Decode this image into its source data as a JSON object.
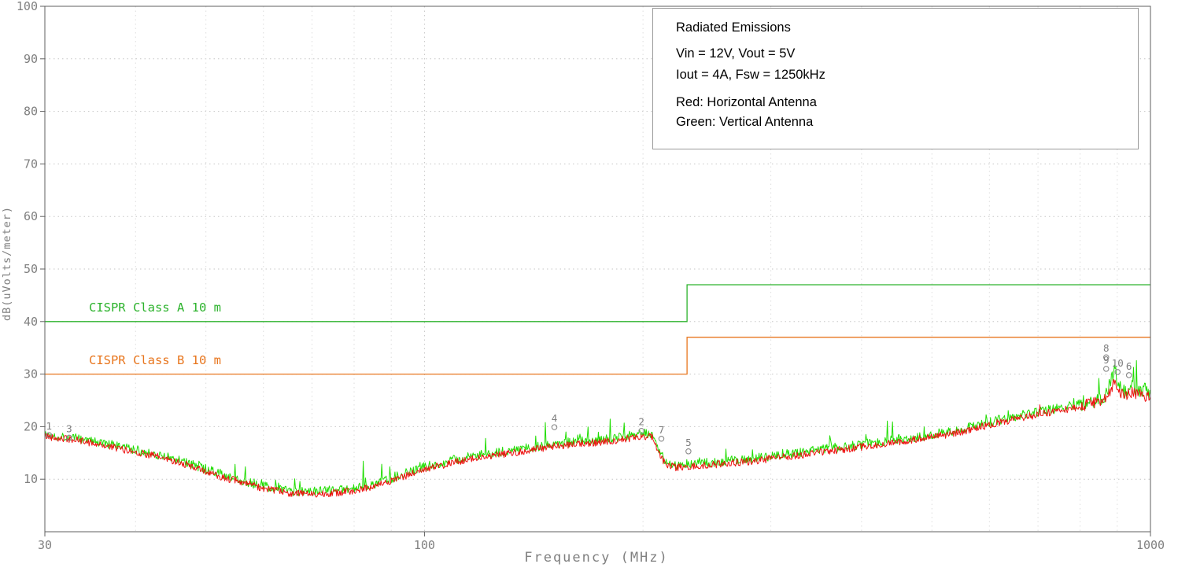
{
  "legend_box": {
    "title": "Radiated Emissions",
    "line_vin": "Vin = 12V,  Vout = 5V",
    "line_iout": "Iout = 4A,  Fsw = 1250kHz",
    "line_red": "Red: Horizontal Antenna",
    "line_green": "Green: Vertical Antenna"
  },
  "chart_data": {
    "type": "line",
    "title": "Radiated Emissions",
    "x_scale": "log",
    "xlabel": "Frequency (MHz)",
    "ylabel": "dB(uVolts/meter)",
    "xlim": [
      30,
      1000
    ],
    "ylim": [
      0,
      100
    ],
    "x_tick_labels": [
      {
        "value": 30,
        "label": "30"
      },
      {
        "value": 100,
        "label": "100"
      },
      {
        "value": 1000,
        "label": "1000"
      }
    ],
    "y_ticks": [
      10,
      20,
      30,
      40,
      50,
      60,
      70,
      80,
      90,
      100
    ],
    "x_minor_grid": [
      40,
      50,
      60,
      70,
      80,
      90,
      200,
      300,
      400,
      500,
      600,
      700,
      800,
      900
    ],
    "x_major_grid": [
      100
    ],
    "grid": true,
    "axis_color": "#808080",
    "series": [
      {
        "name": "Vertical Antenna",
        "color": "#1fdd00",
        "noise": 0.9,
        "spike_rate": 0.07,
        "spike_max": 4.5,
        "spike_window": [
          48,
          1000
        ],
        "seed": 1337,
        "baseline": [
          [
            30,
            18.5
          ],
          [
            34,
            17.6
          ],
          [
            38,
            16.2
          ],
          [
            42,
            15.0
          ],
          [
            46,
            13.6
          ],
          [
            50,
            11.9
          ],
          [
            54,
            10.4
          ],
          [
            58,
            9.2
          ],
          [
            62,
            8.2
          ],
          [
            66,
            7.7
          ],
          [
            70,
            7.6
          ],
          [
            75,
            7.8
          ],
          [
            80,
            8.2
          ],
          [
            85,
            9.0
          ],
          [
            90,
            10.1
          ],
          [
            95,
            11.3
          ],
          [
            100,
            12.3
          ],
          [
            110,
            13.7
          ],
          [
            120,
            14.7
          ],
          [
            135,
            15.7
          ],
          [
            150,
            16.7
          ],
          [
            165,
            17.3
          ],
          [
            180,
            17.7
          ],
          [
            192,
            18.3
          ],
          [
            200,
            18.7
          ],
          [
            206,
            18.5
          ],
          [
            210,
            15.5
          ],
          [
            215,
            13.3
          ],
          [
            222,
            12.7
          ],
          [
            230,
            12.9
          ],
          [
            245,
            13.1
          ],
          [
            260,
            13.5
          ],
          [
            280,
            13.9
          ],
          [
            300,
            14.4
          ],
          [
            320,
            14.9
          ],
          [
            345,
            15.5
          ],
          [
            370,
            16.0
          ],
          [
            400,
            16.6
          ],
          [
            430,
            17.2
          ],
          [
            460,
            17.8
          ],
          [
            500,
            18.5
          ],
          [
            540,
            19.3
          ],
          [
            580,
            20.3
          ],
          [
            620,
            21.3
          ],
          [
            660,
            22.1
          ],
          [
            700,
            22.8
          ],
          [
            740,
            23.4
          ],
          [
            780,
            24.0
          ],
          [
            820,
            24.7
          ],
          [
            850,
            25.4
          ],
          [
            865,
            26.2
          ],
          [
            875,
            27.4
          ],
          [
            885,
            29.2
          ],
          [
            893,
            31.0
          ],
          [
            900,
            29.2
          ],
          [
            910,
            27.6
          ],
          [
            920,
            26.8
          ],
          [
            930,
            27.0
          ],
          [
            940,
            27.6
          ],
          [
            950,
            27.4
          ],
          [
            965,
            27.0
          ],
          [
            980,
            26.8
          ],
          [
            1000,
            26.7
          ]
        ]
      },
      {
        "name": "Horizontal Antenna",
        "color": "#ee1111",
        "noise": 0.7,
        "spike_rate": 0.015,
        "spike_max": 1.8,
        "spike_window": [
          700,
          1000
        ],
        "seed": 42,
        "baseline": [
          [
            30,
            18.2
          ],
          [
            34,
            17.2
          ],
          [
            38,
            15.8
          ],
          [
            42,
            14.6
          ],
          [
            46,
            13.2
          ],
          [
            50,
            11.4
          ],
          [
            54,
            10.0
          ],
          [
            58,
            8.8
          ],
          [
            62,
            7.8
          ],
          [
            66,
            7.3
          ],
          [
            70,
            7.2
          ],
          [
            75,
            7.4
          ],
          [
            80,
            7.8
          ],
          [
            85,
            8.6
          ],
          [
            90,
            9.6
          ],
          [
            95,
            10.8
          ],
          [
            100,
            11.8
          ],
          [
            110,
            13.2
          ],
          [
            120,
            14.2
          ],
          [
            135,
            15.2
          ],
          [
            150,
            16.2
          ],
          [
            165,
            16.8
          ],
          [
            180,
            17.2
          ],
          [
            192,
            17.8
          ],
          [
            200,
            18.2
          ],
          [
            206,
            18.0
          ],
          [
            210,
            15.0
          ],
          [
            215,
            12.8
          ],
          [
            222,
            12.2
          ],
          [
            230,
            12.4
          ],
          [
            245,
            12.6
          ],
          [
            260,
            13.0
          ],
          [
            280,
            13.4
          ],
          [
            300,
            13.9
          ],
          [
            320,
            14.4
          ],
          [
            345,
            15.0
          ],
          [
            370,
            15.5
          ],
          [
            400,
            16.1
          ],
          [
            430,
            16.7
          ],
          [
            460,
            17.3
          ],
          [
            500,
            18.0
          ],
          [
            540,
            18.8
          ],
          [
            580,
            19.8
          ],
          [
            620,
            20.8
          ],
          [
            660,
            21.6
          ],
          [
            700,
            22.3
          ],
          [
            740,
            22.9
          ],
          [
            780,
            23.5
          ],
          [
            820,
            24.2
          ],
          [
            850,
            24.8
          ],
          [
            865,
            25.4
          ],
          [
            875,
            26.2
          ],
          [
            885,
            27.4
          ],
          [
            893,
            28.4
          ],
          [
            900,
            27.2
          ],
          [
            910,
            26.2
          ],
          [
            920,
            25.8
          ],
          [
            930,
            26.0
          ],
          [
            940,
            26.6
          ],
          [
            950,
            26.4
          ],
          [
            965,
            26.1
          ],
          [
            980,
            25.9
          ],
          [
            1000,
            25.8
          ]
        ]
      }
    ],
    "limit_lines": [
      {
        "label": "CISPR Class A  10 m",
        "color": "#2db32d",
        "vertices": [
          [
            30,
            40
          ],
          [
            230,
            40
          ],
          [
            230,
            47
          ],
          [
            1000,
            47
          ]
        ],
        "label_at": [
          34.5,
          41.9
        ]
      },
      {
        "label": "CISPR Class B  10 m",
        "color": "#e8761e",
        "vertices": [
          [
            30,
            30
          ],
          [
            230,
            30
          ],
          [
            230,
            37
          ],
          [
            1000,
            37
          ]
        ],
        "label_at": [
          34.5,
          31.9
        ]
      }
    ],
    "markers": [
      {
        "label": "1",
        "f": 30.4,
        "db": 18.4
      },
      {
        "label": "3",
        "f": 32.4,
        "db": 17.9
      },
      {
        "label": "4",
        "f": 151,
        "db": 19.9
      },
      {
        "label": "2",
        "f": 199,
        "db": 19.2
      },
      {
        "label": "7",
        "f": 212,
        "db": 17.7
      },
      {
        "label": "5",
        "f": 231,
        "db": 15.3
      },
      {
        "label": "8",
        "f": 869,
        "db": 33.2
      },
      {
        "label": "9",
        "f": 869,
        "db": 31.0
      },
      {
        "label": "10",
        "f": 901,
        "db": 30.4
      },
      {
        "label": "6",
        "f": 934,
        "db": 29.8
      }
    ]
  }
}
